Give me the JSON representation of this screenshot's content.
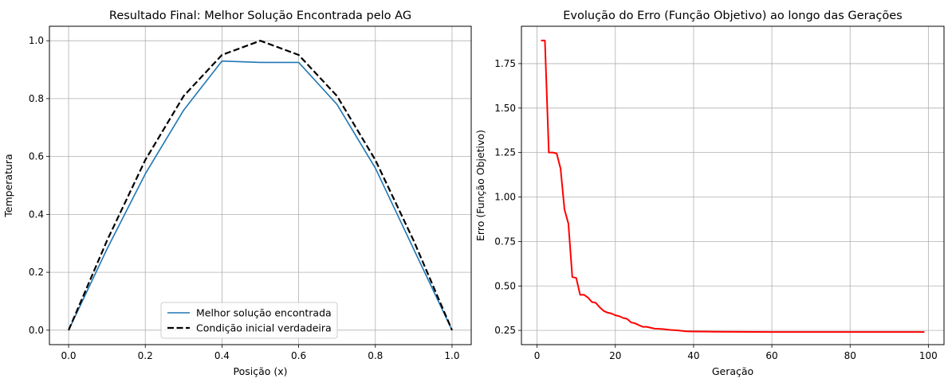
{
  "chart_data": [
    {
      "type": "line",
      "title": "Resultado Final: Melhor Solução Encontrada pelo AG",
      "xlabel": "Posição (x)",
      "ylabel": "Temperatura",
      "xlim": [
        -0.05,
        1.05
      ],
      "ylim": [
        -0.05,
        1.05
      ],
      "xticks": [
        0.0,
        0.2,
        0.4,
        0.6,
        0.8,
        1.0
      ],
      "xtick_labels": [
        "0.0",
        "0.2",
        "0.4",
        "0.6",
        "0.8",
        "1.0"
      ],
      "yticks": [
        0.0,
        0.2,
        0.4,
        0.6,
        0.8,
        1.0
      ],
      "ytick_labels": [
        "0.0",
        "0.2",
        "0.4",
        "0.6",
        "0.8",
        "1.0"
      ],
      "grid": true,
      "legend_position": "lower center",
      "series": [
        {
          "name": "Melhor solução encontrada",
          "color": "#1f77b4",
          "style": "solid",
          "x": [
            0.0,
            0.1,
            0.2,
            0.3,
            0.4,
            0.5,
            0.6,
            0.7,
            0.8,
            0.9,
            1.0
          ],
          "y": [
            0.0,
            0.28,
            0.54,
            0.76,
            0.93,
            0.925,
            0.925,
            0.78,
            0.56,
            0.28,
            0.0
          ]
        },
        {
          "name": "Condição inicial verdadeira",
          "color": "#000000",
          "style": "dashed",
          "x": [
            0.0,
            0.1,
            0.2,
            0.3,
            0.4,
            0.5,
            0.6,
            0.7,
            0.8,
            0.9,
            1.0
          ],
          "y": [
            0.0,
            0.309,
            0.588,
            0.809,
            0.951,
            1.0,
            0.951,
            0.809,
            0.588,
            0.309,
            0.0
          ]
        }
      ]
    },
    {
      "type": "line",
      "title": "Evolução do Erro (Função Objetivo) ao longo das Gerações",
      "xlabel": "Geração",
      "ylabel": "Erro (Função Objetivo)",
      "xlim": [
        -4,
        104
      ],
      "ylim": [
        0.17,
        1.96
      ],
      "xticks": [
        0,
        20,
        40,
        60,
        80,
        100
      ],
      "xtick_labels": [
        "0",
        "20",
        "40",
        "60",
        "80",
        "100"
      ],
      "yticks": [
        0.25,
        0.5,
        0.75,
        1.0,
        1.25,
        1.5,
        1.75
      ],
      "ytick_labels": [
        "0.25",
        "0.50",
        "0.75",
        "1.00",
        "1.25",
        "1.50",
        "1.75"
      ],
      "grid": true,
      "series": [
        {
          "color": "#ff0000",
          "style": "solid",
          "x": [
            1,
            2,
            3,
            4,
            5,
            6,
            7,
            8,
            9,
            10,
            11,
            12,
            13,
            14,
            15,
            16,
            17,
            18,
            19,
            20,
            21,
            22,
            23,
            24,
            25,
            26,
            27,
            28,
            29,
            30,
            32,
            34,
            36,
            38,
            40,
            45,
            50,
            60,
            70,
            80,
            90,
            99
          ],
          "y": [
            1.88,
            1.88,
            1.25,
            1.25,
            1.245,
            1.16,
            0.93,
            0.85,
            0.55,
            0.545,
            0.45,
            0.45,
            0.435,
            0.41,
            0.405,
            0.38,
            0.36,
            0.35,
            0.345,
            0.335,
            0.33,
            0.32,
            0.315,
            0.295,
            0.29,
            0.28,
            0.27,
            0.27,
            0.265,
            0.26,
            0.258,
            0.253,
            0.25,
            0.245,
            0.244,
            0.243,
            0.242,
            0.241,
            0.241,
            0.241,
            0.241,
            0.241
          ]
        }
      ]
    }
  ]
}
